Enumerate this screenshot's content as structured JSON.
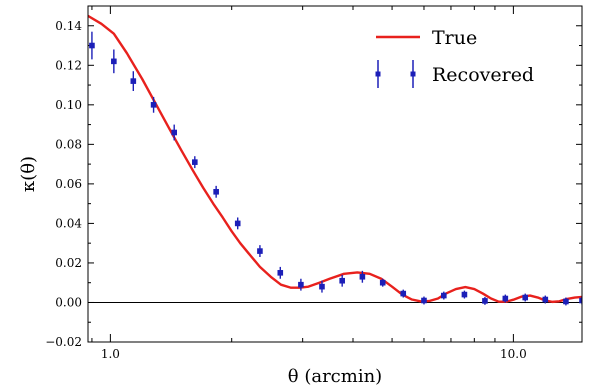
{
  "chart_data": {
    "type": "line",
    "xlabel": "θ (arcmin)",
    "ylabel": "κ(θ)",
    "xscale": "log",
    "xlim": [
      0.88,
      14.8
    ],
    "ylim": [
      -0.02,
      0.15
    ],
    "xticks": [
      1.0,
      10.0
    ],
    "xtick_labels": [
      "1.0",
      "10.0"
    ],
    "yticks": [
      -0.02,
      0.0,
      0.02,
      0.04,
      0.06,
      0.08,
      0.1,
      0.12,
      0.14
    ],
    "ytick_labels": [
      "−0.02",
      "0.00",
      "0.02",
      "0.04",
      "0.06",
      "0.08",
      "0.10",
      "0.12",
      "0.14"
    ],
    "reference_line_y": 0.0,
    "legend_position": "top-right",
    "grid": false,
    "series": [
      {
        "name": "True",
        "kind": "line",
        "color": "#e8211d",
        "x": [
          0.88,
          0.95,
          1.02,
          1.1,
          1.2,
          1.3,
          1.4,
          1.5,
          1.6,
          1.7,
          1.8,
          1.9,
          2.0,
          2.1,
          2.2,
          2.35,
          2.5,
          2.65,
          2.8,
          2.95,
          3.1,
          3.3,
          3.5,
          3.8,
          4.1,
          4.4,
          4.7,
          5.0,
          5.3,
          5.6,
          5.9,
          6.2,
          6.5,
          6.8,
          7.2,
          7.6,
          8.0,
          8.4,
          8.8,
          9.2,
          9.6,
          10.0,
          10.5,
          11.0,
          11.5,
          12.0,
          12.5,
          13.0,
          13.6,
          14.2,
          14.8
        ],
        "y": [
          0.145,
          0.141,
          0.136,
          0.126,
          0.113,
          0.1,
          0.088,
          0.077,
          0.067,
          0.058,
          0.05,
          0.043,
          0.036,
          0.03,
          0.025,
          0.018,
          0.013,
          0.009,
          0.0075,
          0.0075,
          0.008,
          0.01,
          0.012,
          0.0145,
          0.0152,
          0.0145,
          0.012,
          0.008,
          0.004,
          0.0015,
          0.0005,
          0.0008,
          0.002,
          0.0045,
          0.0068,
          0.0078,
          0.0068,
          0.0045,
          0.002,
          0.0004,
          0.0004,
          0.0014,
          0.003,
          0.0035,
          0.0025,
          0.001,
          0.0003,
          0.0006,
          0.0018,
          0.0025,
          0.0028
        ]
      },
      {
        "name": "Recovered",
        "kind": "errorbar",
        "color": "#1c1fb8",
        "x": [
          0.9,
          1.02,
          1.14,
          1.28,
          1.44,
          1.62,
          1.83,
          2.07,
          2.35,
          2.64,
          2.97,
          3.35,
          3.76,
          4.22,
          4.74,
          5.33,
          6.0,
          6.72,
          7.56,
          8.5,
          9.55,
          10.7,
          12.0,
          13.5,
          14.8
        ],
        "y": [
          0.13,
          0.122,
          0.112,
          0.1,
          0.086,
          0.071,
          0.056,
          0.04,
          0.026,
          0.015,
          0.009,
          0.008,
          0.011,
          0.013,
          0.01,
          0.0045,
          0.001,
          0.0035,
          0.004,
          0.0008,
          0.002,
          0.0025,
          0.0015,
          0.0005,
          0.001
        ],
        "yerr": [
          0.007,
          0.006,
          0.005,
          0.004,
          0.004,
          0.003,
          0.003,
          0.003,
          0.003,
          0.003,
          0.003,
          0.003,
          0.003,
          0.003,
          0.002,
          0.002,
          0.002,
          0.002,
          0.002,
          0.002,
          0.002,
          0.002,
          0.002,
          0.002,
          0.002
        ]
      }
    ]
  }
}
